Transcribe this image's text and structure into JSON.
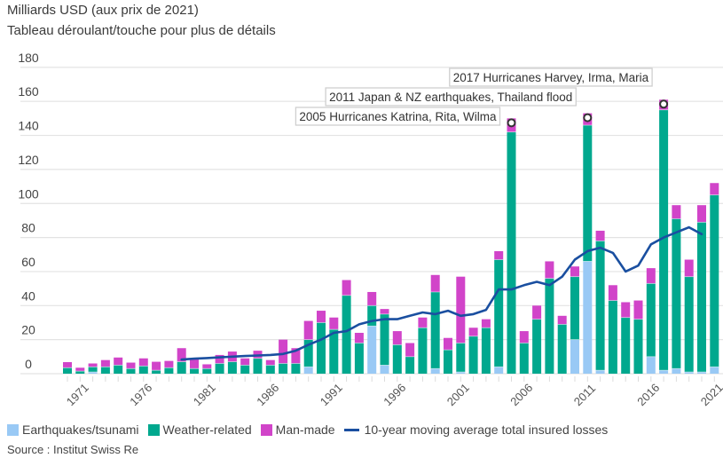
{
  "header": {
    "subtitle": "Milliards USD (aux prix de 2021)",
    "hint": "Tableau déroulant/touche pour plus de détails"
  },
  "legend": {
    "items": [
      {
        "label": "Earthquakes/tsunami",
        "color": "#99c9f5",
        "kind": "box"
      },
      {
        "label": "Weather-related",
        "color": "#00a88e",
        "kind": "box"
      },
      {
        "label": "Man-made",
        "color": "#d144c9",
        "kind": "box"
      },
      {
        "label": "10-year moving average total insured losses",
        "color": "#1a4fa0",
        "kind": "line"
      }
    ]
  },
  "source": "Source : Institut Swiss Re",
  "chart_data": {
    "type": "bar",
    "stacked": true,
    "title": "Milliards USD (aux prix de 2021)",
    "xlabel": "",
    "ylabel": "Milliards USD",
    "ylim": [
      0,
      180
    ],
    "yticks": [
      0,
      20,
      40,
      60,
      80,
      100,
      120,
      140,
      160,
      180
    ],
    "grid": true,
    "legend_position": "bottom",
    "categories": [
      1970,
      1971,
      1972,
      1973,
      1974,
      1975,
      1976,
      1977,
      1978,
      1979,
      1980,
      1981,
      1982,
      1983,
      1984,
      1985,
      1986,
      1987,
      1988,
      1989,
      1990,
      1991,
      1992,
      1993,
      1994,
      1995,
      1996,
      1997,
      1998,
      1999,
      2000,
      2001,
      2002,
      2003,
      2004,
      2005,
      2006,
      2007,
      2008,
      2009,
      2010,
      2011,
      2012,
      2013,
      2014,
      2015,
      2016,
      2017,
      2018,
      2019,
      2020,
      2021
    ],
    "xtick_labels": [
      "1971",
      "1976",
      "1981",
      "1986",
      "1991",
      "1996",
      "2001",
      "2006",
      "2011",
      "2016",
      "2021"
    ],
    "series": [
      {
        "name": "Earthquakes/tsunami",
        "color": "#99c9f5",
        "values": [
          0,
          0,
          1,
          0,
          0,
          0,
          0,
          0,
          0,
          0,
          0,
          0,
          0,
          0,
          0,
          0,
          0,
          0,
          0,
          4,
          0,
          0,
          0,
          0,
          28,
          5,
          0,
          0,
          0,
          3,
          0,
          1,
          0,
          0,
          4,
          0,
          0,
          0,
          0,
          0,
          20,
          66,
          2,
          0,
          0,
          0,
          10,
          2,
          3,
          1,
          1,
          4
        ]
      },
      {
        "name": "Weather-related",
        "color": "#00a88e",
        "values": [
          3.5,
          1.5,
          3,
          4,
          5,
          3,
          4.5,
          2,
          3.5,
          7,
          3,
          3,
          6,
          7,
          5,
          9,
          5,
          6,
          6,
          16,
          30,
          26,
          46,
          18,
          12,
          30,
          17,
          10,
          27,
          45,
          14,
          17,
          22,
          27,
          63,
          142,
          18,
          32,
          56,
          29,
          37,
          80,
          76,
          43,
          33,
          32,
          43,
          153,
          88,
          56,
          88,
          101
        ]
      },
      {
        "name": "Man-made",
        "color": "#d144c9",
        "values": [
          3.3,
          2,
          2,
          4,
          4.5,
          3.5,
          4.5,
          5,
          4,
          8,
          6,
          2.5,
          5,
          6,
          4,
          4.5,
          3,
          14,
          9,
          11,
          7,
          7,
          9,
          6,
          8,
          3,
          8,
          8,
          6,
          10,
          7,
          39,
          5,
          5,
          5,
          8,
          7,
          8,
          10,
          5,
          6,
          7,
          6,
          9,
          9,
          11,
          9,
          6,
          8,
          10,
          10,
          7
        ]
      }
    ],
    "moving_average": {
      "name": "10-year moving average total insured losses",
      "color": "#1a4fa0",
      "start_year": 1979,
      "values": [
        8.3,
        8.8,
        9.2,
        9.6,
        10,
        10.4,
        10.7,
        11,
        11.6,
        13.5,
        17,
        20,
        24,
        25,
        29,
        31,
        32,
        32,
        34,
        36,
        35,
        37,
        34,
        35,
        37.5,
        49.5,
        49.5,
        52,
        54,
        52,
        57,
        67,
        72,
        74,
        71,
        60,
        63.5,
        76,
        80,
        83,
        86,
        82
      ]
    },
    "annotations": [
      {
        "year": 2005,
        "text": "2005 Hurricanes Katrina, Rita, Wilma",
        "value": 150
      },
      {
        "year": 2011,
        "text": "2011 Japan & NZ earthquakes, Thailand flood",
        "value": 153
      },
      {
        "year": 2017,
        "text": "2017 Hurricanes Harvey, Irma, Maria",
        "value": 161
      }
    ]
  }
}
